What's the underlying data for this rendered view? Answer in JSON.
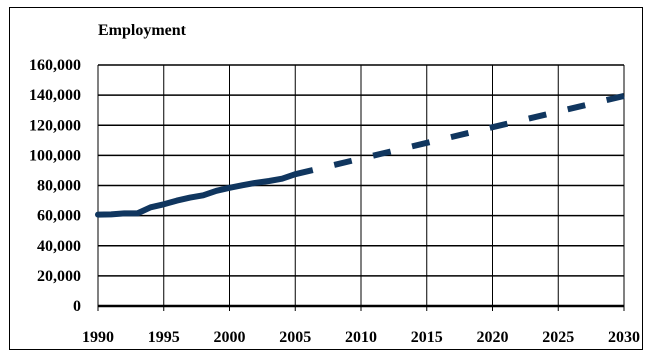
{
  "chart_data": {
    "type": "line",
    "title": "Employment",
    "xlabel": "",
    "ylabel": "",
    "xlim": [
      1990,
      2030
    ],
    "ylim": [
      0,
      160000
    ],
    "x_ticks": [
      1990,
      1995,
      2000,
      2005,
      2010,
      2015,
      2020,
      2025,
      2030
    ],
    "x_tick_labels": [
      "1990",
      "1995",
      "2000",
      "2005",
      "2010",
      "2015",
      "2020",
      "2025",
      "2030"
    ],
    "y_ticks": [
      0,
      20000,
      40000,
      60000,
      80000,
      100000,
      120000,
      140000,
      160000
    ],
    "y_tick_labels": [
      "0",
      "20,000",
      "40,000",
      "60,000",
      "80,000",
      "100,000",
      "120,000",
      "140,000",
      "160,000"
    ],
    "grid": true,
    "series": [
      {
        "style": "solid",
        "color": "#10365f",
        "x": [
          1990,
          1991,
          1992,
          1993,
          1994,
          1995,
          1996,
          1997,
          1998,
          1999,
          2000,
          2001,
          2002,
          2003,
          2004,
          2005
        ],
        "values": [
          60700,
          60800,
          61500,
          61500,
          65500,
          67500,
          70000,
          72000,
          73500,
          76500,
          78500,
          80200,
          81800,
          83000,
          84500,
          87500
        ]
      },
      {
        "style": "dashed",
        "color": "#10365f",
        "x": [
          2005,
          2030
        ],
        "values": [
          87500,
          139500
        ]
      }
    ]
  }
}
